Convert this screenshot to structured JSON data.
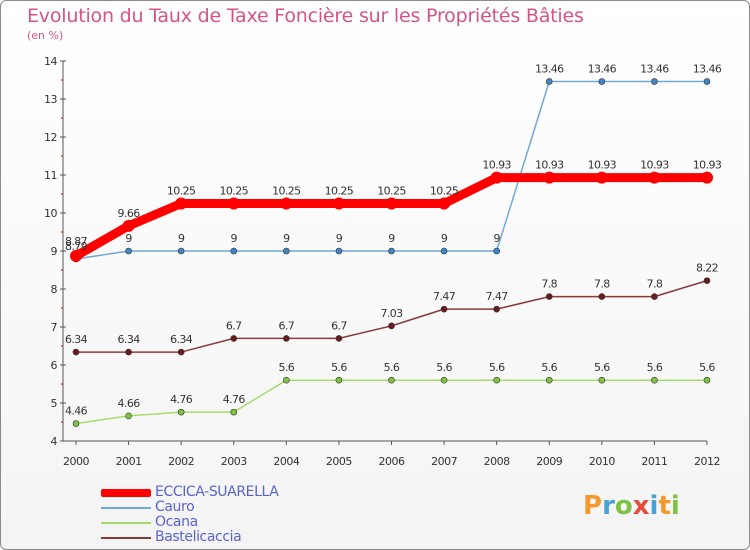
{
  "title": "Evolution du Taux de Taxe Foncière sur les Propriétés Bâties",
  "subtitle": "(en %)",
  "logo": {
    "text": "Proxiti",
    "letters": [
      "P",
      "r",
      "o",
      "x",
      "i",
      "t",
      "i"
    ]
  },
  "colors": {
    "title": "#d2548a",
    "legend_text": "#5a64c8"
  },
  "chart_data": {
    "type": "line",
    "title": "Evolution du Taux de Taxe Foncière sur les Propriétés Bâties",
    "ylabel": "(en %)",
    "xlabel": "",
    "x": [
      "2000",
      "2001",
      "2002",
      "2003",
      "2004",
      "2005",
      "2006",
      "2007",
      "2008",
      "2009",
      "2010",
      "2011",
      "2012"
    ],
    "ylim": [
      4,
      14
    ],
    "yticks": [
      "4",
      "5",
      "6",
      "7",
      "8",
      "9",
      "10",
      "11",
      "12",
      "13",
      "14"
    ],
    "grid": false,
    "legend_position": "bottom-left",
    "series": [
      {
        "name": "ECCICA-SUARELLA",
        "color": "#ff0000",
        "style": "thick",
        "values": [
          8.87,
          9.66,
          10.25,
          10.25,
          10.25,
          10.25,
          10.25,
          10.25,
          10.93,
          10.93,
          10.93,
          10.93,
          10.93
        ],
        "labels": [
          "8.87",
          "9.66",
          "10.25",
          "10.25",
          "10.25",
          "10.25",
          "10.25",
          "10.25",
          "10.93",
          "10.93",
          "10.93",
          "10.93",
          "10.93"
        ]
      },
      {
        "name": "Cauro",
        "color": "#70a8d8",
        "marker": "#3f87c8",
        "style": "thin",
        "values": [
          8.79,
          9,
          9,
          9,
          9,
          9,
          9,
          9,
          9,
          13.46,
          13.46,
          13.46,
          13.46
        ],
        "labels": [
          "8.79",
          "9",
          "9",
          "9",
          "9",
          "9",
          "9",
          "9",
          "9",
          "13.46",
          "13.46",
          "13.46",
          "13.46"
        ]
      },
      {
        "name": "Ocana",
        "color": "#a6dc6c",
        "marker": "#7ec242",
        "style": "thin",
        "values": [
          4.46,
          4.66,
          4.76,
          4.76,
          5.6,
          5.6,
          5.6,
          5.6,
          5.6,
          5.6,
          5.6,
          5.6,
          5.6
        ],
        "labels": [
          "4.46",
          "4.66",
          "4.76",
          "4.76",
          "5.6",
          "5.6",
          "5.6",
          "5.6",
          "5.6",
          "5.6",
          "5.6",
          "5.6",
          "5.6"
        ]
      },
      {
        "name": "Bastelicaccia",
        "color": "#8a3a3a",
        "marker": "#6a1a1a",
        "style": "thin",
        "values": [
          6.34,
          6.34,
          6.34,
          6.7,
          6.7,
          6.7,
          7.03,
          7.47,
          7.47,
          7.8,
          7.8,
          7.8,
          8.22
        ],
        "labels": [
          "6.34",
          "6.34",
          "6.34",
          "6.7",
          "6.7",
          "6.7",
          "7.03",
          "7.47",
          "7.47",
          "7.8",
          "7.8",
          "7.8",
          "8.22"
        ]
      }
    ]
  }
}
